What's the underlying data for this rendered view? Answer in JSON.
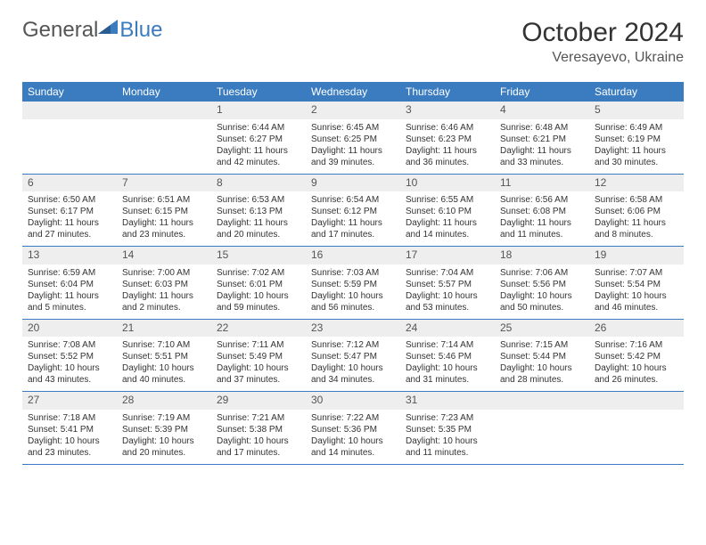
{
  "logo": {
    "text1": "General",
    "text2": "Blue"
  },
  "title": "October 2024",
  "location": "Veresayevo, Ukraine",
  "colors": {
    "header_bg": "#3a7cbf",
    "header_text": "#ffffff",
    "daynum_bg": "#eeeeee",
    "daynum_text": "#555555",
    "border": "#3a7cbf",
    "body_text": "#333333"
  },
  "day_names": [
    "Sunday",
    "Monday",
    "Tuesday",
    "Wednesday",
    "Thursday",
    "Friday",
    "Saturday"
  ],
  "weeks": [
    [
      null,
      null,
      {
        "n": "1",
        "sr": "6:44 AM",
        "ss": "6:27 PM",
        "dl": "11 hours and 42 minutes."
      },
      {
        "n": "2",
        "sr": "6:45 AM",
        "ss": "6:25 PM",
        "dl": "11 hours and 39 minutes."
      },
      {
        "n": "3",
        "sr": "6:46 AM",
        "ss": "6:23 PM",
        "dl": "11 hours and 36 minutes."
      },
      {
        "n": "4",
        "sr": "6:48 AM",
        "ss": "6:21 PM",
        "dl": "11 hours and 33 minutes."
      },
      {
        "n": "5",
        "sr": "6:49 AM",
        "ss": "6:19 PM",
        "dl": "11 hours and 30 minutes."
      }
    ],
    [
      {
        "n": "6",
        "sr": "6:50 AM",
        "ss": "6:17 PM",
        "dl": "11 hours and 27 minutes."
      },
      {
        "n": "7",
        "sr": "6:51 AM",
        "ss": "6:15 PM",
        "dl": "11 hours and 23 minutes."
      },
      {
        "n": "8",
        "sr": "6:53 AM",
        "ss": "6:13 PM",
        "dl": "11 hours and 20 minutes."
      },
      {
        "n": "9",
        "sr": "6:54 AM",
        "ss": "6:12 PM",
        "dl": "11 hours and 17 minutes."
      },
      {
        "n": "10",
        "sr": "6:55 AM",
        "ss": "6:10 PM",
        "dl": "11 hours and 14 minutes."
      },
      {
        "n": "11",
        "sr": "6:56 AM",
        "ss": "6:08 PM",
        "dl": "11 hours and 11 minutes."
      },
      {
        "n": "12",
        "sr": "6:58 AM",
        "ss": "6:06 PM",
        "dl": "11 hours and 8 minutes."
      }
    ],
    [
      {
        "n": "13",
        "sr": "6:59 AM",
        "ss": "6:04 PM",
        "dl": "11 hours and 5 minutes."
      },
      {
        "n": "14",
        "sr": "7:00 AM",
        "ss": "6:03 PM",
        "dl": "11 hours and 2 minutes."
      },
      {
        "n": "15",
        "sr": "7:02 AM",
        "ss": "6:01 PM",
        "dl": "10 hours and 59 minutes."
      },
      {
        "n": "16",
        "sr": "7:03 AM",
        "ss": "5:59 PM",
        "dl": "10 hours and 56 minutes."
      },
      {
        "n": "17",
        "sr": "7:04 AM",
        "ss": "5:57 PM",
        "dl": "10 hours and 53 minutes."
      },
      {
        "n": "18",
        "sr": "7:06 AM",
        "ss": "5:56 PM",
        "dl": "10 hours and 50 minutes."
      },
      {
        "n": "19",
        "sr": "7:07 AM",
        "ss": "5:54 PM",
        "dl": "10 hours and 46 minutes."
      }
    ],
    [
      {
        "n": "20",
        "sr": "7:08 AM",
        "ss": "5:52 PM",
        "dl": "10 hours and 43 minutes."
      },
      {
        "n": "21",
        "sr": "7:10 AM",
        "ss": "5:51 PM",
        "dl": "10 hours and 40 minutes."
      },
      {
        "n": "22",
        "sr": "7:11 AM",
        "ss": "5:49 PM",
        "dl": "10 hours and 37 minutes."
      },
      {
        "n": "23",
        "sr": "7:12 AM",
        "ss": "5:47 PM",
        "dl": "10 hours and 34 minutes."
      },
      {
        "n": "24",
        "sr": "7:14 AM",
        "ss": "5:46 PM",
        "dl": "10 hours and 31 minutes."
      },
      {
        "n": "25",
        "sr": "7:15 AM",
        "ss": "5:44 PM",
        "dl": "10 hours and 28 minutes."
      },
      {
        "n": "26",
        "sr": "7:16 AM",
        "ss": "5:42 PM",
        "dl": "10 hours and 26 minutes."
      }
    ],
    [
      {
        "n": "27",
        "sr": "7:18 AM",
        "ss": "5:41 PM",
        "dl": "10 hours and 23 minutes."
      },
      {
        "n": "28",
        "sr": "7:19 AM",
        "ss": "5:39 PM",
        "dl": "10 hours and 20 minutes."
      },
      {
        "n": "29",
        "sr": "7:21 AM",
        "ss": "5:38 PM",
        "dl": "10 hours and 17 minutes."
      },
      {
        "n": "30",
        "sr": "7:22 AM",
        "ss": "5:36 PM",
        "dl": "10 hours and 14 minutes."
      },
      {
        "n": "31",
        "sr": "7:23 AM",
        "ss": "5:35 PM",
        "dl": "10 hours and 11 minutes."
      },
      null,
      null
    ]
  ],
  "labels": {
    "sunrise": "Sunrise:",
    "sunset": "Sunset:",
    "daylight": "Daylight:"
  }
}
